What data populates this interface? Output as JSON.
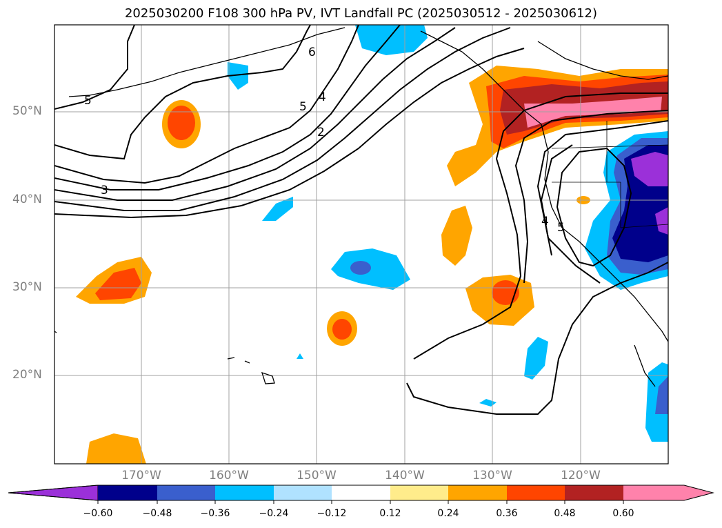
{
  "title": "2025030200 F108 300 hPa PV, IVT Landfall PC (2025030512 - 2025030612)",
  "lat_labels": [
    "50°N",
    "40°N",
    "30°N",
    "20°N"
  ],
  "lon_labels": [
    "170°W",
    "160°W",
    "150°W",
    "140°W",
    "130°W",
    "120°W"
  ],
  "contour_labels": [
    "5",
    "6",
    "5",
    "4",
    "2",
    "3",
    "4",
    "5"
  ],
  "colorbar": {
    "ticks": [
      "−0.60",
      "−0.48",
      "−0.36",
      "−0.24",
      "−0.12",
      "0.12",
      "0.24",
      "0.36",
      "0.48",
      "0.60"
    ],
    "colors": [
      "#9b30d9",
      "#00008b",
      "#3a5fcd",
      "#00bfff",
      "#b0e2ff",
      "#ffffff",
      "#ffec8b",
      "#ffa500",
      "#ff4500",
      "#b22222",
      "#ff82ab"
    ]
  },
  "colors": {
    "land_outline": "#000000",
    "grid": "#a0a0a0"
  }
}
